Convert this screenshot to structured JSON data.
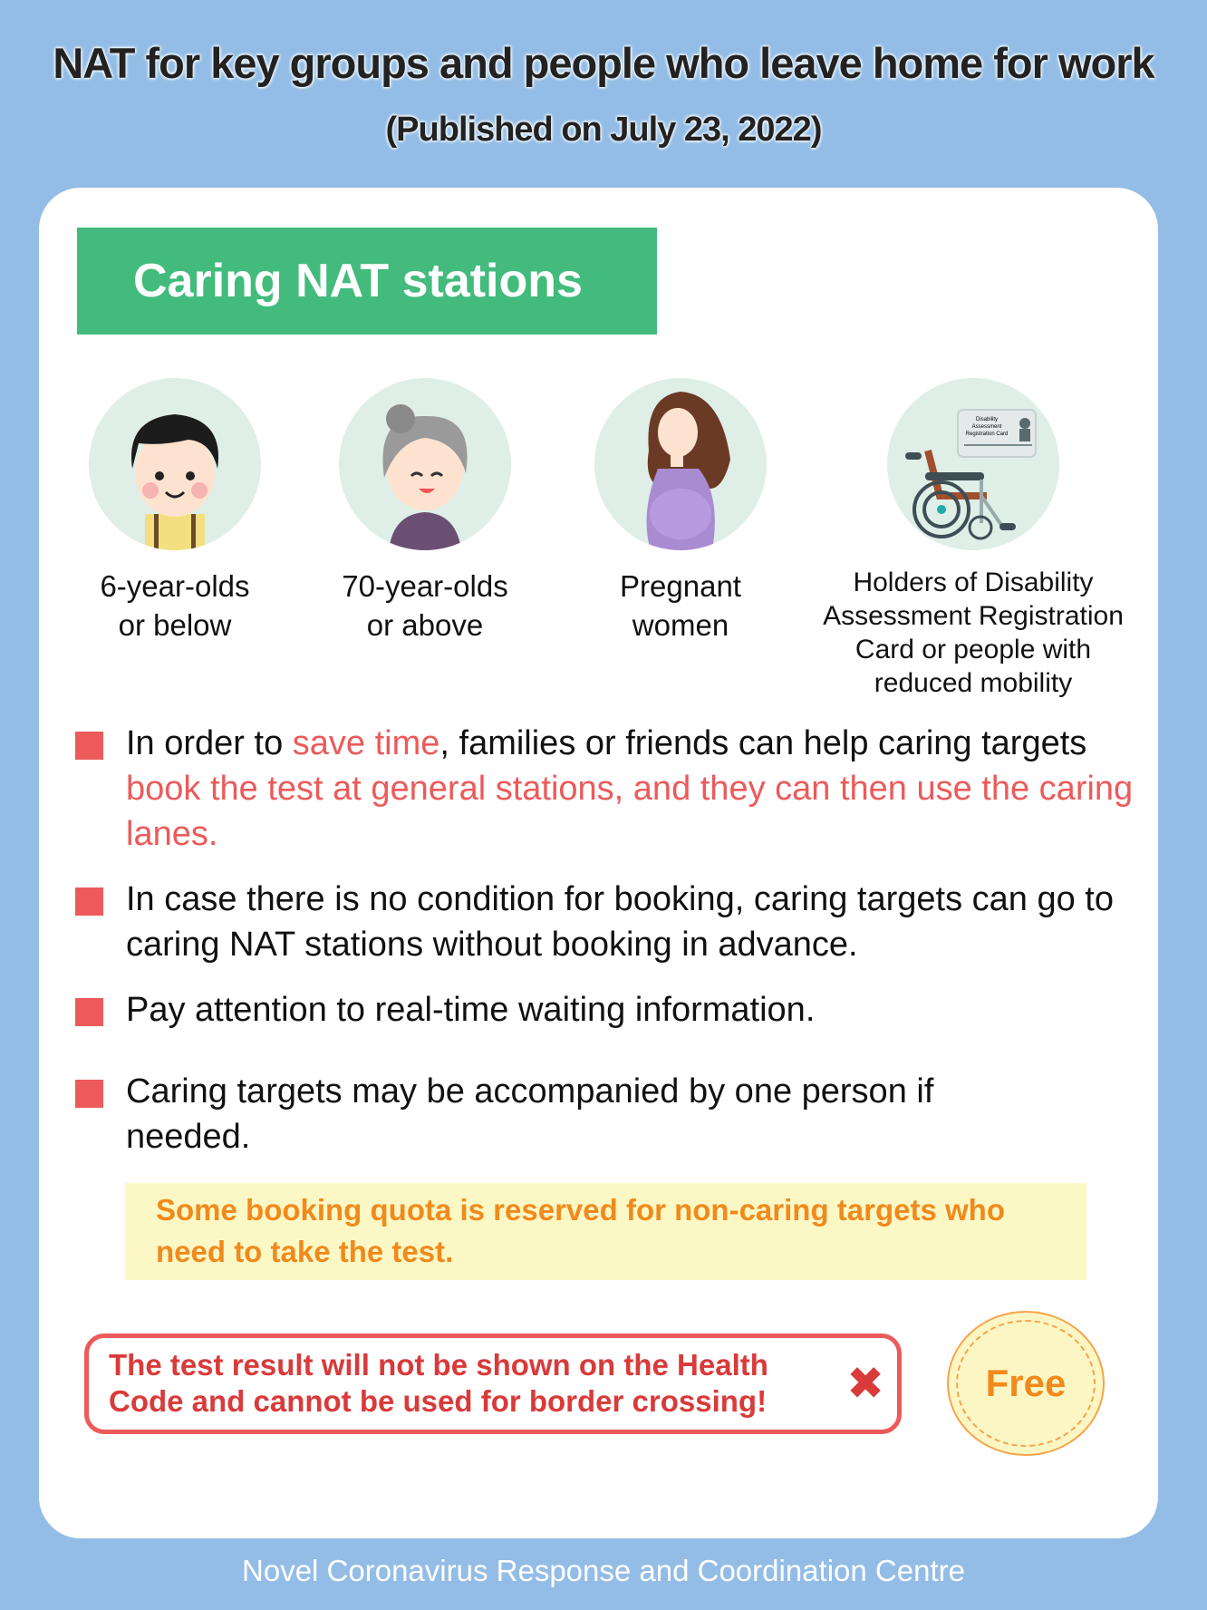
{
  "header": {
    "title": "NAT for key groups and people who leave home for work",
    "subtitle": "(Published on July 23, 2022)"
  },
  "banner": {
    "label": "Caring NAT stations",
    "color": "#42bb7d"
  },
  "groups": [
    {
      "icon": "child-icon",
      "line1": "6-year-olds",
      "line2": "or below"
    },
    {
      "icon": "elderly-icon",
      "line1": "70-year-olds",
      "line2": "or above"
    },
    {
      "icon": "pregnant-woman-icon",
      "line1": "Pregnant",
      "line2": "women"
    },
    {
      "icon": "wheelchair-card-icon",
      "lines": [
        "Holders of Disability",
        "Assessment Registration",
        "Card or people with",
        "reduced mobility"
      ],
      "card_text": [
        "Disability",
        "Assessment",
        "Registration Card"
      ]
    }
  ],
  "bullets": [
    {
      "parts": [
        "In order to ",
        "save time",
        ", families or friends can help caring targets ",
        "book the test at general stations, and they can then use the caring lanes."
      ]
    },
    {
      "text": "In case there is no condition for booking, caring targets can go to caring NAT stations without booking in advance."
    },
    {
      "text": "Pay attention to real-time waiting information."
    },
    {
      "text": "Caring targets may be accompanied by one person if needed."
    }
  ],
  "notice": "Some booking quota is reserved for non-caring targets who need to take the test.",
  "warning": {
    "text": "The test result will not be shown on the Health Code and cannot be used for border crossing!",
    "icon": "cross-icon",
    "symbol": "✖"
  },
  "badge": "Free",
  "footer": "Novel Coronavirus Response and Coordination Centre",
  "colors": {
    "background": "#93bde6",
    "accent_red": "#ec5a5a",
    "notice_orange": "#f08a1c",
    "notice_bg": "#fcf8c6"
  }
}
